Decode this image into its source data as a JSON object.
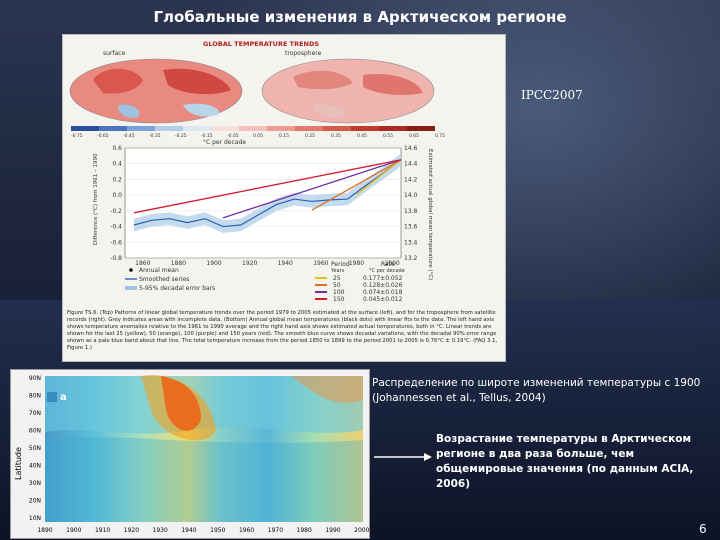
{
  "slide": {
    "title": "Глобальные изменения в Арктическом регионе",
    "source_label": "IPCC2007",
    "note_distribution": "Распределение по широте изменений температуры с 1900 (Johannessen et al., Tellus, 2004)",
    "note_conclusion": "Возрастание температуры в Арктическом регионе в два раза больше, чем общемировые значения (по данным ACIA, 2006)",
    "page_number": "6"
  },
  "figure_top": {
    "maps_title": "GLOBAL TEMPERATURE TRENDS",
    "map_left_label": "surface",
    "map_right_label": "troposphere",
    "scale_label": "°C per decade",
    "scale_ticks": [
      "-0.75",
      "-0.65",
      "-0.45",
      "-0.35",
      "-0.25",
      "-0.15",
      "-0.05",
      "0.05",
      "0.15",
      "0.25",
      "0.35",
      "0.45",
      "0.55",
      "0.65",
      "0.75"
    ],
    "y_left_label": "Difference (°C) from 1961 – 1990",
    "y_left_ticks": [
      "0.6",
      "0.4",
      "0.2",
      "0.0",
      "-0.2",
      "-0.4",
      "-0.6",
      "-0.8"
    ],
    "y_right_label": "Estimated actual global mean temperature (°C)",
    "y_right_ticks": [
      "14.6",
      "14.4",
      "14.2",
      "14.0",
      "13.8",
      "13.6",
      "13.4",
      "13.2"
    ],
    "x_ticks": [
      "1860",
      "1880",
      "1900",
      "1920",
      "1940",
      "1960",
      "1980",
      "2000"
    ],
    "legend": {
      "annual_mean": "Annual mean",
      "smoothed": "Smoothed series",
      "error_bars": "5-95% decadal error bars",
      "table_header": [
        "Period",
        "Rate"
      ],
      "table_subheader": [
        "Years",
        "°C per decade"
      ],
      "rows": [
        {
          "years": "25",
          "rate": "0.177±0.052",
          "color": "#e8c020"
        },
        {
          "years": "50",
          "rate": "0.128±0.026",
          "color": "#e07020"
        },
        {
          "years": "100",
          "rate": "0.074±0.018",
          "color": "#7030a0"
        },
        {
          "years": "150",
          "rate": "0.045±0.012",
          "color": "#d02030"
        }
      ]
    },
    "caption": "Figure TS.6. (Top) Patterns of linear global temperature trends over the period 1979 to 2005 estimated at the surface (left), and for the troposphere from satellite records (right). Grey indicates areas with incomplete data. (Bottom) Annual global mean temperatures (black dots) with linear fits to the data. The left hand axis shows temperature anomalies relative to the 1961 to 1990 average and the right hand axis shows estimated actual temperatures, both in °C. Linear trends are shown for the last 25 (yellow), 50 (orange), 100 (purple) and 150 years (red). The smooth blue curve shows decadal variations, with the decadal 90% error range shown as a pale blue band about that line. The total temperature increase from the period 1850 to 1899 to the period 2001 to 2005 is 0.76°C ± 0.19°C. (FAQ 3.1, Figure 1.)"
  },
  "chart_data": {
    "type": "line",
    "title": "",
    "xlabel": "",
    "ylabel": "Difference (°C) from 1961 – 1990",
    "xlim": [
      1850,
      2005
    ],
    "ylim": [
      -0.8,
      0.6
    ],
    "series": [
      {
        "name": "Smoothed series",
        "x": [
          1855,
          1865,
          1875,
          1885,
          1895,
          1905,
          1915,
          1925,
          1935,
          1945,
          1955,
          1965,
          1975,
          1985,
          1995,
          2005
        ],
        "values": [
          -0.38,
          -0.32,
          -0.3,
          -0.35,
          -0.3,
          -0.4,
          -0.38,
          -0.25,
          -0.12,
          -0.05,
          -0.08,
          -0.06,
          -0.05,
          0.12,
          0.28,
          0.45
        ]
      }
    ]
  },
  "figure_bottom": {
    "panel_label": "a",
    "y_axis_label": "Latitude",
    "y_ticks": [
      "90N",
      "80N",
      "70N",
      "60N",
      "50N",
      "40N",
      "30N",
      "20N",
      "10N"
    ],
    "x_ticks": [
      "1890",
      "1900",
      "1910",
      "1920",
      "1930",
      "1940",
      "1950",
      "1960",
      "1970",
      "1980",
      "1990",
      "2000"
    ]
  }
}
